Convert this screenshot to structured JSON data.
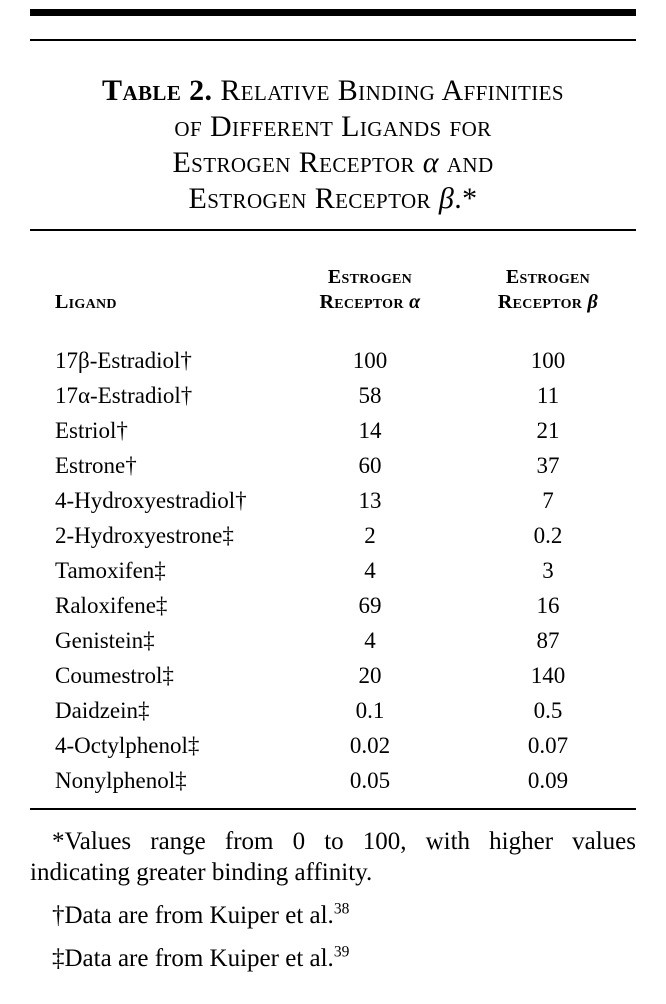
{
  "title": {
    "label": "Table 2.",
    "line1": "Relative Binding Affinities",
    "line2": "of Different Ligands for",
    "line3_pre": "Estrogen Receptor",
    "line3_sym": "α",
    "line3_post": "and",
    "line4_pre": "Estrogen Receptor",
    "line4_sym": "β",
    "line4_post": ".*"
  },
  "header": {
    "ligand": "Ligand",
    "alpha_line1": "Estrogen",
    "alpha_line2": "Receptor",
    "alpha_sym": "α",
    "beta_line1": "Estrogen",
    "beta_line2": "Receptor",
    "beta_sym": "β"
  },
  "rows": [
    {
      "name": "17β-Estradiol†",
      "alpha": "100",
      "beta": "100"
    },
    {
      "name": "17α-Estradiol†",
      "alpha": "58",
      "beta": "11"
    },
    {
      "name": "Estriol†",
      "alpha": "14",
      "beta": "21"
    },
    {
      "name": "Estrone†",
      "alpha": "60",
      "beta": "37"
    },
    {
      "name": "4-Hydroxyestradiol†",
      "alpha": "13",
      "beta": "7"
    },
    {
      "name": "2-Hydroxyestrone‡",
      "alpha": "2",
      "beta": "0.2"
    },
    {
      "name": "Tamoxifen‡",
      "alpha": "4",
      "beta": "3"
    },
    {
      "name": "Raloxifene‡",
      "alpha": "69",
      "beta": "16"
    },
    {
      "name": "Genistein‡",
      "alpha": "4",
      "beta": "87"
    },
    {
      "name": "Coumestrol‡",
      "alpha": "20",
      "beta": "140"
    },
    {
      "name": "Daidzein‡",
      "alpha": "0.1",
      "beta": "0.5"
    },
    {
      "name": "4-Octylphenol‡",
      "alpha": "0.02",
      "beta": "0.07"
    },
    {
      "name": "Nonylphenol‡",
      "alpha": "0.05",
      "beta": "0.09"
    }
  ],
  "footnotes": {
    "star": "*Values range from 0 to 100, with higher values indicating greater binding affinity.",
    "dagger_pre": "†Data are from Kuiper et al.",
    "dagger_ref": "38",
    "ddagger_pre": "‡Data are from Kuiper et al.",
    "ddagger_ref": "39"
  },
  "chart_data": {
    "type": "table",
    "title": "Table 2. Relative Binding Affinities of Different Ligands for Estrogen Receptor α and Estrogen Receptor β.",
    "columns": [
      "Ligand",
      "Estrogen Receptor α",
      "Estrogen Receptor β"
    ],
    "categories": [
      "17β-Estradiol",
      "17α-Estradiol",
      "Estriol",
      "Estrone",
      "4-Hydroxyestradiol",
      "2-Hydroxyestrone",
      "Tamoxifen",
      "Raloxifene",
      "Genistein",
      "Coumestrol",
      "Daidzein",
      "4-Octylphenol",
      "Nonylphenol"
    ],
    "series": [
      {
        "name": "Estrogen Receptor α",
        "values": [
          100,
          58,
          14,
          60,
          13,
          2,
          4,
          69,
          4,
          20,
          0.1,
          0.02,
          0.05
        ]
      },
      {
        "name": "Estrogen Receptor β",
        "values": [
          100,
          11,
          21,
          37,
          7,
          0.2,
          3,
          16,
          87,
          140,
          0.5,
          0.07,
          0.09
        ]
      }
    ],
    "value_range_note": "Values range from 0 to 100, with higher values indicating greater binding affinity."
  }
}
